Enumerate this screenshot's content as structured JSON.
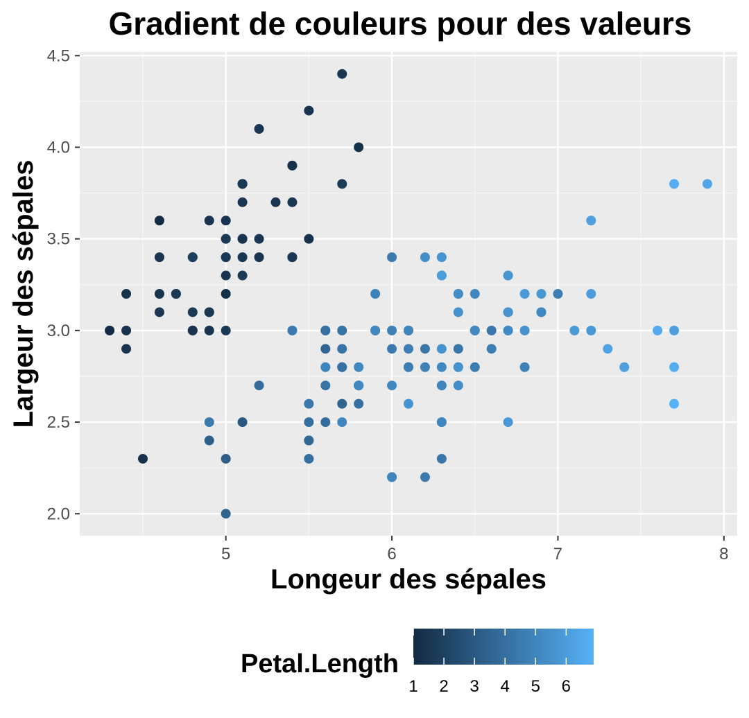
{
  "chart_data": {
    "type": "scatter",
    "title": "Gradient de couleurs pour des valeurs",
    "xlabel": "Longeur des sépales",
    "ylabel": "Largeur des sépales",
    "xlim": [
      4.12,
      8.08
    ],
    "ylim": [
      1.88,
      4.52
    ],
    "x_ticks": [
      5,
      6,
      7,
      8
    ],
    "y_ticks": [
      2.0,
      2.5,
      3.0,
      3.5,
      4.0,
      4.5
    ],
    "x_tick_labels": [
      "5",
      "6",
      "7",
      "8"
    ],
    "y_tick_labels": [
      "2.0",
      "2.5",
      "3.0",
      "3.5",
      "4.0",
      "4.5"
    ],
    "grid": true,
    "legend": {
      "title": "Petal.Length",
      "position": "bottom",
      "type": "colorbar",
      "range": [
        1.0,
        6.9
      ],
      "ticks": [
        1,
        2,
        3,
        4,
        5,
        6
      ],
      "tick_labels": [
        "1",
        "2",
        "3",
        "4",
        "5",
        "6"
      ],
      "low_color": "#132B43",
      "high_color": "#56B1F7"
    },
    "colors": {
      "panel_background": "#EBEBEB",
      "grid_major": "#FFFFFF",
      "grid_minor": "#F5F5F5",
      "tick_label": "#4D4D4D"
    },
    "points": [
      [
        5.1,
        3.5,
        1.4
      ],
      [
        4.9,
        3.0,
        1.4
      ],
      [
        4.7,
        3.2,
        1.3
      ],
      [
        4.6,
        3.1,
        1.5
      ],
      [
        5.0,
        3.6,
        1.4
      ],
      [
        5.4,
        3.9,
        1.7
      ],
      [
        4.6,
        3.4,
        1.4
      ],
      [
        5.0,
        3.4,
        1.5
      ],
      [
        4.4,
        2.9,
        1.4
      ],
      [
        4.9,
        3.1,
        1.5
      ],
      [
        5.4,
        3.7,
        1.5
      ],
      [
        4.8,
        3.4,
        1.6
      ],
      [
        4.8,
        3.0,
        1.4
      ],
      [
        4.3,
        3.0,
        1.1
      ],
      [
        5.8,
        4.0,
        1.2
      ],
      [
        5.7,
        4.4,
        1.5
      ],
      [
        5.4,
        3.9,
        1.3
      ],
      [
        5.1,
        3.5,
        1.4
      ],
      [
        5.7,
        3.8,
        1.7
      ],
      [
        5.1,
        3.8,
        1.5
      ],
      [
        5.4,
        3.4,
        1.7
      ],
      [
        5.1,
        3.7,
        1.5
      ],
      [
        4.6,
        3.6,
        1.0
      ],
      [
        5.1,
        3.3,
        1.7
      ],
      [
        4.8,
        3.4,
        1.9
      ],
      [
        5.0,
        3.0,
        1.6
      ],
      [
        5.0,
        3.4,
        1.6
      ],
      [
        5.2,
        3.5,
        1.5
      ],
      [
        5.2,
        3.4,
        1.4
      ],
      [
        4.7,
        3.2,
        1.6
      ],
      [
        4.8,
        3.1,
        1.6
      ],
      [
        5.4,
        3.4,
        1.5
      ],
      [
        5.2,
        4.1,
        1.5
      ],
      [
        5.5,
        4.2,
        1.4
      ],
      [
        4.9,
        3.1,
        1.5
      ],
      [
        5.0,
        3.2,
        1.2
      ],
      [
        5.5,
        3.5,
        1.3
      ],
      [
        4.9,
        3.6,
        1.4
      ],
      [
        4.4,
        3.0,
        1.3
      ],
      [
        5.1,
        3.4,
        1.5
      ],
      [
        5.0,
        3.5,
        1.3
      ],
      [
        4.5,
        2.3,
        1.3
      ],
      [
        4.4,
        3.2,
        1.3
      ],
      [
        5.0,
        3.5,
        1.6
      ],
      [
        5.1,
        3.8,
        1.9
      ],
      [
        4.8,
        3.0,
        1.4
      ],
      [
        5.1,
        3.8,
        1.6
      ],
      [
        4.6,
        3.2,
        1.4
      ],
      [
        5.3,
        3.7,
        1.5
      ],
      [
        5.0,
        3.3,
        1.4
      ],
      [
        7.0,
        3.2,
        4.7
      ],
      [
        6.4,
        3.2,
        4.5
      ],
      [
        6.9,
        3.1,
        4.9
      ],
      [
        5.5,
        2.3,
        4.0
      ],
      [
        6.5,
        2.8,
        4.6
      ],
      [
        5.7,
        2.8,
        4.5
      ],
      [
        6.3,
        3.3,
        4.7
      ],
      [
        4.9,
        2.4,
        3.3
      ],
      [
        6.6,
        2.9,
        4.6
      ],
      [
        5.2,
        2.7,
        3.9
      ],
      [
        5.0,
        2.0,
        3.5
      ],
      [
        5.9,
        3.0,
        4.2
      ],
      [
        6.0,
        2.2,
        4.0
      ],
      [
        6.1,
        2.9,
        4.7
      ],
      [
        5.6,
        2.9,
        3.6
      ],
      [
        6.7,
        3.1,
        4.4
      ],
      [
        5.6,
        3.0,
        4.5
      ],
      [
        5.8,
        2.7,
        4.1
      ],
      [
        6.2,
        2.2,
        4.5
      ],
      [
        5.6,
        2.5,
        3.9
      ],
      [
        5.9,
        3.2,
        4.8
      ],
      [
        6.1,
        2.8,
        4.0
      ],
      [
        6.3,
        2.5,
        4.9
      ],
      [
        6.1,
        2.8,
        4.7
      ],
      [
        6.4,
        2.9,
        4.3
      ],
      [
        6.6,
        3.0,
        4.4
      ],
      [
        6.8,
        2.8,
        4.8
      ],
      [
        6.7,
        3.0,
        5.0
      ],
      [
        6.0,
        2.9,
        4.5
      ],
      [
        5.7,
        2.6,
        3.5
      ],
      [
        5.5,
        2.4,
        3.8
      ],
      [
        5.5,
        2.4,
        3.7
      ],
      [
        5.8,
        2.7,
        3.9
      ],
      [
        6.0,
        2.7,
        5.1
      ],
      [
        5.4,
        3.0,
        4.5
      ],
      [
        6.0,
        3.4,
        4.5
      ],
      [
        6.7,
        3.1,
        4.7
      ],
      [
        6.3,
        2.3,
        4.4
      ],
      [
        5.6,
        3.0,
        4.1
      ],
      [
        5.5,
        2.5,
        4.0
      ],
      [
        5.5,
        2.6,
        4.4
      ],
      [
        6.1,
        3.0,
        4.6
      ],
      [
        5.8,
        2.6,
        4.0
      ],
      [
        5.0,
        2.3,
        3.3
      ],
      [
        5.6,
        2.7,
        4.2
      ],
      [
        5.7,
        3.0,
        4.2
      ],
      [
        5.7,
        2.9,
        4.2
      ],
      [
        6.2,
        2.9,
        4.3
      ],
      [
        5.1,
        2.5,
        3.0
      ],
      [
        5.7,
        2.8,
        4.1
      ],
      [
        6.3,
        3.3,
        6.0
      ],
      [
        5.8,
        2.7,
        5.1
      ],
      [
        7.1,
        3.0,
        5.9
      ],
      [
        6.3,
        2.9,
        5.6
      ],
      [
        6.5,
        3.0,
        5.8
      ],
      [
        7.6,
        3.0,
        6.6
      ],
      [
        4.9,
        2.5,
        4.5
      ],
      [
        7.3,
        2.9,
        6.3
      ],
      [
        6.7,
        2.5,
        5.8
      ],
      [
        7.2,
        3.6,
        6.1
      ],
      [
        6.5,
        3.2,
        5.1
      ],
      [
        6.4,
        2.7,
        5.3
      ],
      [
        6.8,
        3.0,
        5.5
      ],
      [
        5.7,
        2.5,
        5.0
      ],
      [
        5.8,
        2.8,
        5.1
      ],
      [
        6.4,
        3.2,
        5.3
      ],
      [
        6.5,
        3.0,
        5.5
      ],
      [
        7.7,
        3.8,
        6.7
      ],
      [
        7.7,
        2.6,
        6.9
      ],
      [
        6.0,
        2.2,
        5.0
      ],
      [
        6.9,
        3.2,
        5.7
      ],
      [
        5.6,
        2.8,
        4.9
      ],
      [
        7.7,
        2.8,
        6.7
      ],
      [
        6.3,
        2.7,
        4.9
      ],
      [
        6.7,
        3.3,
        5.7
      ],
      [
        7.2,
        3.2,
        6.0
      ],
      [
        6.2,
        2.8,
        4.8
      ],
      [
        6.1,
        3.0,
        4.9
      ],
      [
        6.4,
        2.8,
        5.6
      ],
      [
        7.2,
        3.0,
        5.8
      ],
      [
        7.4,
        2.8,
        6.1
      ],
      [
        7.9,
        3.8,
        6.4
      ],
      [
        6.4,
        2.8,
        5.6
      ],
      [
        6.3,
        2.8,
        5.1
      ],
      [
        6.1,
        2.6,
        5.6
      ],
      [
        7.7,
        3.0,
        6.1
      ],
      [
        6.3,
        3.4,
        5.6
      ],
      [
        6.4,
        3.1,
        5.5
      ],
      [
        6.0,
        3.0,
        4.8
      ],
      [
        6.9,
        3.1,
        5.4
      ],
      [
        6.7,
        3.1,
        5.6
      ],
      [
        6.9,
        3.1,
        5.1
      ],
      [
        5.8,
        2.7,
        5.1
      ],
      [
        6.8,
        3.2,
        5.9
      ],
      [
        6.7,
        3.3,
        5.7
      ],
      [
        6.7,
        3.0,
        5.2
      ],
      [
        6.3,
        2.5,
        5.0
      ],
      [
        6.5,
        3.0,
        5.2
      ],
      [
        6.2,
        3.4,
        5.4
      ],
      [
        5.9,
        3.0,
        5.1
      ]
    ]
  }
}
